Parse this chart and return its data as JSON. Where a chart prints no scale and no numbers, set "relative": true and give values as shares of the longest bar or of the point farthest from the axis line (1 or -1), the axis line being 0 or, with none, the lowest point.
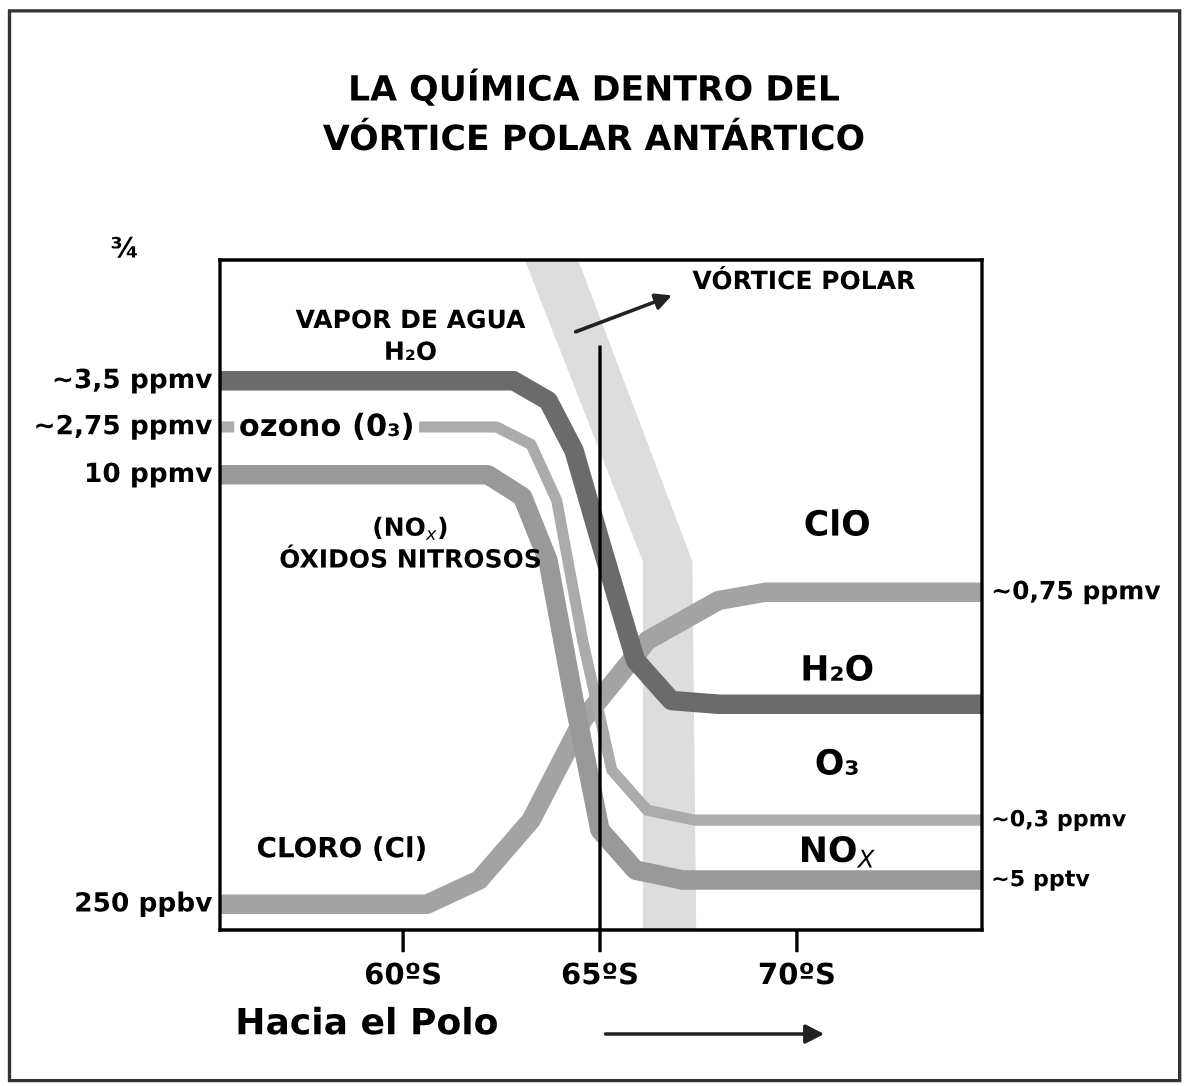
{
  "chart_data": {
    "type": "line",
    "title": "LA QUÍMICA DENTRO DEL\nVÓRTICE POLAR ANTÁRTICO",
    "xlabel": "Hacia el Polo",
    "relative": true,
    "tick_labels": "x",
    "grid": false,
    "marker": "none",
    "line_style": "solid",
    "xlim": [
      55.35,
      74.7
    ],
    "xticks": [
      {
        "value": 60,
        "label": "60ºS"
      },
      {
        "value": 65,
        "label": "65ºS"
      },
      {
        "value": 70,
        "label": "70ºS"
      }
    ],
    "series": [
      {
        "name": "H₂O",
        "color": "#6b6b6b",
        "x": [
          55.35,
          62.81,
          63.68,
          64.34,
          65.0,
          65.9,
          66.81,
          68.01,
          74.7
        ],
        "values": [
          1.0,
          1.0,
          0.964,
          0.873,
          0.709,
          0.491,
          0.418,
          0.411,
          0.411
        ]
      },
      {
        "name": "O₃",
        "color": "#ababab",
        "x": [
          55.35,
          62.37,
          63.25,
          63.9,
          64.56,
          65.3,
          66.2,
          67.4,
          74.7
        ],
        "values": [
          0.916,
          0.916,
          0.884,
          0.782,
          0.527,
          0.291,
          0.218,
          0.2,
          0.2
        ]
      },
      {
        "name": "NO$_{X}$",
        "color": "#999999",
        "x": [
          55.35,
          62.15,
          63.03,
          63.68,
          64.34,
          65.0,
          65.9,
          67.1,
          74.7
        ],
        "values": [
          0.829,
          0.829,
          0.789,
          0.673,
          0.418,
          0.182,
          0.109,
          0.091,
          0.091
        ]
      },
      {
        "name": "ClO",
        "color": "#a3a3a3",
        "x": [
          55.35,
          60.61,
          61.93,
          63.25,
          64.56,
          66.2,
          68.01,
          69.2,
          74.7
        ],
        "values": [
          0.047,
          0.047,
          0.091,
          0.2,
          0.382,
          0.527,
          0.6,
          0.615,
          0.615
        ]
      }
    ],
    "ref_lines": [
      {
        "axis": "x",
        "value": 65,
        "color": "#000000"
      }
    ],
    "annotations": [
      "¾",
      "VÓRTICE POLAR",
      "VAPOR DE AGUA\nH₂O",
      "ozono (0₃)",
      "(NO$_{x}$)\nÓXIDOS NITROSOS",
      "CLORO (Cl)",
      "~3,5 ppmv",
      "~2,75 ppmv",
      "10 ppmv",
      "250 ppbv",
      "~0,75 ppmv",
      "~0,3 ppmv",
      "~5 pptv"
    ]
  }
}
